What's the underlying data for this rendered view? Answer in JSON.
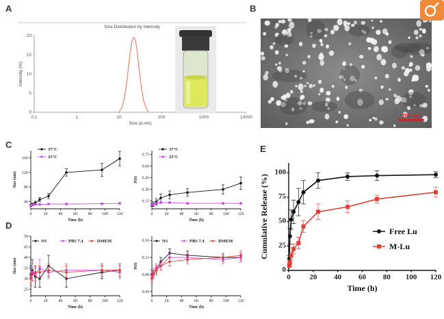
{
  "chart_data": [
    {
      "panel": "A",
      "type": "line",
      "title": "Size Distribution by Intensity",
      "xlabel": "Size (d.nm)",
      "ylabel": "Intensity (%)",
      "x_scale": "log",
      "xticks": [
        "0.1",
        "1",
        "10",
        "100",
        "1000",
        "10000"
      ],
      "yticks": [
        "0",
        "5",
        "10",
        "15",
        "20"
      ],
      "xlim": [
        0.1,
        10000
      ],
      "ylim": [
        0,
        20
      ],
      "color": "#e07a6a",
      "series": [
        {
          "x": [
            10,
            12,
            14,
            16,
            18,
            20,
            22,
            24,
            26,
            28,
            30,
            34,
            38,
            44,
            50
          ],
          "values": [
            0,
            1.5,
            5,
            10,
            15,
            18.5,
            19.5,
            19,
            17,
            14,
            11,
            6,
            3,
            1,
            0
          ]
        }
      ],
      "inset": "photo of vial with yellow-green solution"
    },
    {
      "panel": "B",
      "type": "image",
      "description_visible": "TEM micrograph with scale bar",
      "scale_bar_label": "200 nm"
    },
    {
      "panel": "C-left",
      "type": "line",
      "xlabel": "Time (h)",
      "ylabel": "Size (nm)",
      "xticks": [
        "0",
        "20",
        "40",
        "60",
        "80",
        "100",
        "120"
      ],
      "yticks": [
        "40",
        "80",
        "120",
        "160"
      ],
      "xlim": [
        0,
        120
      ],
      "ylim": [
        20,
        180
      ],
      "series": [
        {
          "name": "37°C",
          "color": "#111111",
          "x": [
            0,
            2,
            6,
            12,
            24,
            48,
            96,
            120
          ],
          "values": [
            30,
            32,
            36,
            45,
            55,
            120,
            127,
            158
          ],
          "err": [
            3,
            4,
            5,
            6,
            7,
            10,
            18,
            20
          ]
        },
        {
          "name": "25°C",
          "color": "#c24ce0",
          "x": [
            0,
            2,
            6,
            12,
            24,
            48,
            96,
            120
          ],
          "values": [
            30,
            31,
            32,
            32,
            33,
            33,
            34,
            35
          ],
          "err": [
            2,
            2,
            2,
            2,
            2,
            2,
            2,
            2
          ]
        }
      ]
    },
    {
      "panel": "C-right",
      "type": "line",
      "xlabel": "Time (h)",
      "ylabel": "PDI",
      "xticks": [
        "0",
        "20",
        "40",
        "60",
        "80",
        "100",
        "120"
      ],
      "yticks": [
        "0.15",
        "0.30",
        "0.45",
        "0.60",
        "0.75"
      ],
      "xlim": [
        0,
        120
      ],
      "ylim": [
        0.05,
        0.8
      ],
      "series": [
        {
          "name": "37°C",
          "color": "#111111",
          "x": [
            0,
            2,
            6,
            12,
            24,
            48,
            96,
            120
          ],
          "values": [
            0.1,
            0.11,
            0.14,
            0.19,
            0.23,
            0.26,
            0.3,
            0.38
          ],
          "err": [
            0.02,
            0.03,
            0.04,
            0.05,
            0.05,
            0.05,
            0.06,
            0.08
          ]
        },
        {
          "name": "25°C",
          "color": "#c24ce0",
          "x": [
            0,
            2,
            6,
            12,
            24,
            48,
            96,
            120
          ],
          "values": [
            0.1,
            0.11,
            0.12,
            0.13,
            0.13,
            0.12,
            0.12,
            0.12
          ],
          "err": [
            0.01,
            0.01,
            0.01,
            0.01,
            0.01,
            0.01,
            0.01,
            0.01
          ]
        }
      ]
    },
    {
      "panel": "D-left",
      "type": "line",
      "xlabel": "Time (h)",
      "ylabel": "Size (nm)",
      "xticks": [
        "0",
        "20",
        "40",
        "60",
        "80",
        "100",
        "120"
      ],
      "yticks": [
        "25",
        "30",
        "35",
        "40",
        "45",
        "50"
      ],
      "xlim": [
        0,
        120
      ],
      "ylim": [
        22,
        50
      ],
      "series": [
        {
          "name": "NS",
          "color": "#111111",
          "x": [
            0,
            2,
            6,
            12,
            24,
            48,
            96,
            120
          ],
          "values": [
            32,
            34,
            31,
            30,
            36,
            30,
            33,
            34
          ],
          "err": [
            4,
            5,
            5,
            4,
            5,
            4,
            3,
            3
          ]
        },
        {
          "name": "PBS 7.4",
          "color": "#c24ce0",
          "x": [
            0,
            2,
            6,
            12,
            24,
            48,
            96,
            120
          ],
          "values": [
            31,
            33,
            32,
            35,
            33,
            34,
            34,
            33
          ],
          "err": [
            3,
            4,
            3,
            4,
            3,
            3,
            3,
            3
          ]
        },
        {
          "name": "DMEM",
          "color": "#e0403a",
          "x": [
            0,
            2,
            6,
            12,
            24,
            48,
            96,
            120
          ],
          "values": [
            30,
            32,
            33,
            33,
            34,
            33,
            34,
            34
          ],
          "err": [
            3,
            3,
            3,
            3,
            3,
            3,
            3,
            3
          ]
        }
      ]
    },
    {
      "panel": "D-right",
      "type": "line",
      "xlabel": "Time (h)",
      "ylabel": "PDI",
      "xticks": [
        "0",
        "20",
        "40",
        "60",
        "80",
        "100",
        "120"
      ],
      "yticks": [
        "0.04",
        "0.08",
        "0.12",
        "0.16"
      ],
      "xlim": [
        0,
        120
      ],
      "ylim": [
        0.03,
        0.17
      ],
      "series": [
        {
          "name": "NS",
          "color": "#111111",
          "x": [
            0,
            2,
            6,
            12,
            24,
            48,
            96,
            120
          ],
          "values": [
            0.08,
            0.08,
            0.09,
            0.11,
            0.13,
            0.125,
            0.12,
            0.12
          ],
          "err": [
            0.01,
            0.01,
            0.01,
            0.01,
            0.01,
            0.01,
            0.01,
            0.01
          ]
        },
        {
          "name": "PBS 7.4",
          "color": "#c24ce0",
          "x": [
            0,
            2,
            6,
            12,
            24,
            48,
            96,
            120
          ],
          "values": [
            0.075,
            0.085,
            0.095,
            0.1,
            0.12,
            0.12,
            0.115,
            0.12
          ],
          "err": [
            0.01,
            0.01,
            0.01,
            0.01,
            0.01,
            0.01,
            0.01,
            0.01
          ]
        },
        {
          "name": "DMEM",
          "color": "#e0403a",
          "x": [
            0,
            2,
            6,
            12,
            24,
            48,
            96,
            120
          ],
          "values": [
            0.07,
            0.08,
            0.09,
            0.1,
            0.11,
            0.115,
            0.12,
            0.125
          ],
          "err": [
            0.01,
            0.01,
            0.01,
            0.01,
            0.01,
            0.01,
            0.01,
            0.01
          ]
        }
      ]
    },
    {
      "panel": "E",
      "type": "line",
      "xlabel": "Time (h)",
      "ylabel": "Cumulative Release (%)",
      "xticks": [
        "0",
        "20",
        "40",
        "60",
        "80",
        "100",
        "120"
      ],
      "yticks": [
        "0",
        "25",
        "50",
        "75",
        "100"
      ],
      "xlim": [
        0,
        120
      ],
      "ylim": [
        0,
        110
      ],
      "legend_position": "center-right",
      "series": [
        {
          "name": "Free Lu",
          "color": "#111111",
          "marker": "circle",
          "x": [
            0.5,
            1,
            2,
            4,
            8,
            12,
            24,
            48,
            72,
            120
          ],
          "values": [
            12,
            35,
            52,
            60,
            70,
            80,
            92,
            96,
            97,
            98
          ],
          "err": [
            3,
            8,
            10,
            12,
            14,
            12,
            8,
            4,
            5,
            3
          ]
        },
        {
          "name": "M-Lu",
          "color": "#e0403a",
          "marker": "square",
          "x": [
            0.5,
            1,
            2,
            4,
            8,
            12,
            24,
            48,
            72,
            120
          ],
          "values": [
            5,
            8,
            15,
            22,
            28,
            45,
            60,
            65,
            73,
            80
          ],
          "err": [
            2,
            3,
            4,
            5,
            6,
            6,
            8,
            6,
            4,
            5
          ]
        }
      ]
    }
  ],
  "ui": {
    "panel_letters": [
      "A",
      "B",
      "C",
      "D",
      "E"
    ],
    "corner_icon": "lens-icon"
  }
}
